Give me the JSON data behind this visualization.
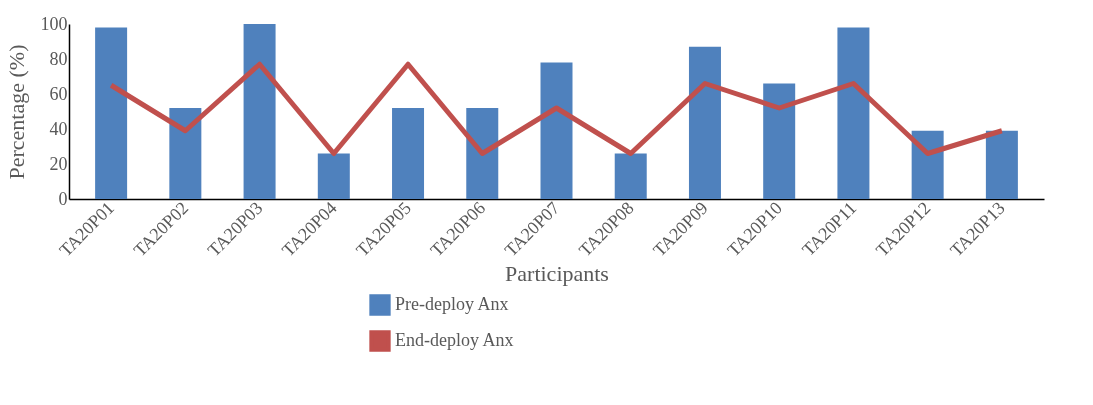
{
  "chart_data": {
    "type": "bar",
    "xlabel": "Participants",
    "ylabel": "Percentage (%)",
    "categories": [
      "TA20P01",
      "TA20P02",
      "TA20P03",
      "TA20P04",
      "TA20P05",
      "TA20P06",
      "TA20P07",
      "TA20P08",
      "TA20P09",
      "TA20P10",
      "TA20P11",
      "TA20P12",
      "TA20P13"
    ],
    "series": [
      {
        "name": "Pre-deploy Anx",
        "type": "bar",
        "color": "#4f81bd",
        "values": [
          98,
          52,
          100,
          26,
          52,
          52,
          78,
          26,
          87,
          66,
          98,
          39,
          39
        ]
      },
      {
        "name": "End-deploy Anx",
        "type": "line",
        "color": "#c0504d",
        "values": [
          65,
          39,
          77,
          26,
          77,
          26,
          52,
          26,
          66,
          52,
          66,
          26,
          39
        ]
      }
    ],
    "ylim": [
      0,
      100
    ],
    "yticks": [
      0,
      20,
      40,
      60,
      80,
      100
    ],
    "grid": false,
    "legend": "bottom"
  }
}
